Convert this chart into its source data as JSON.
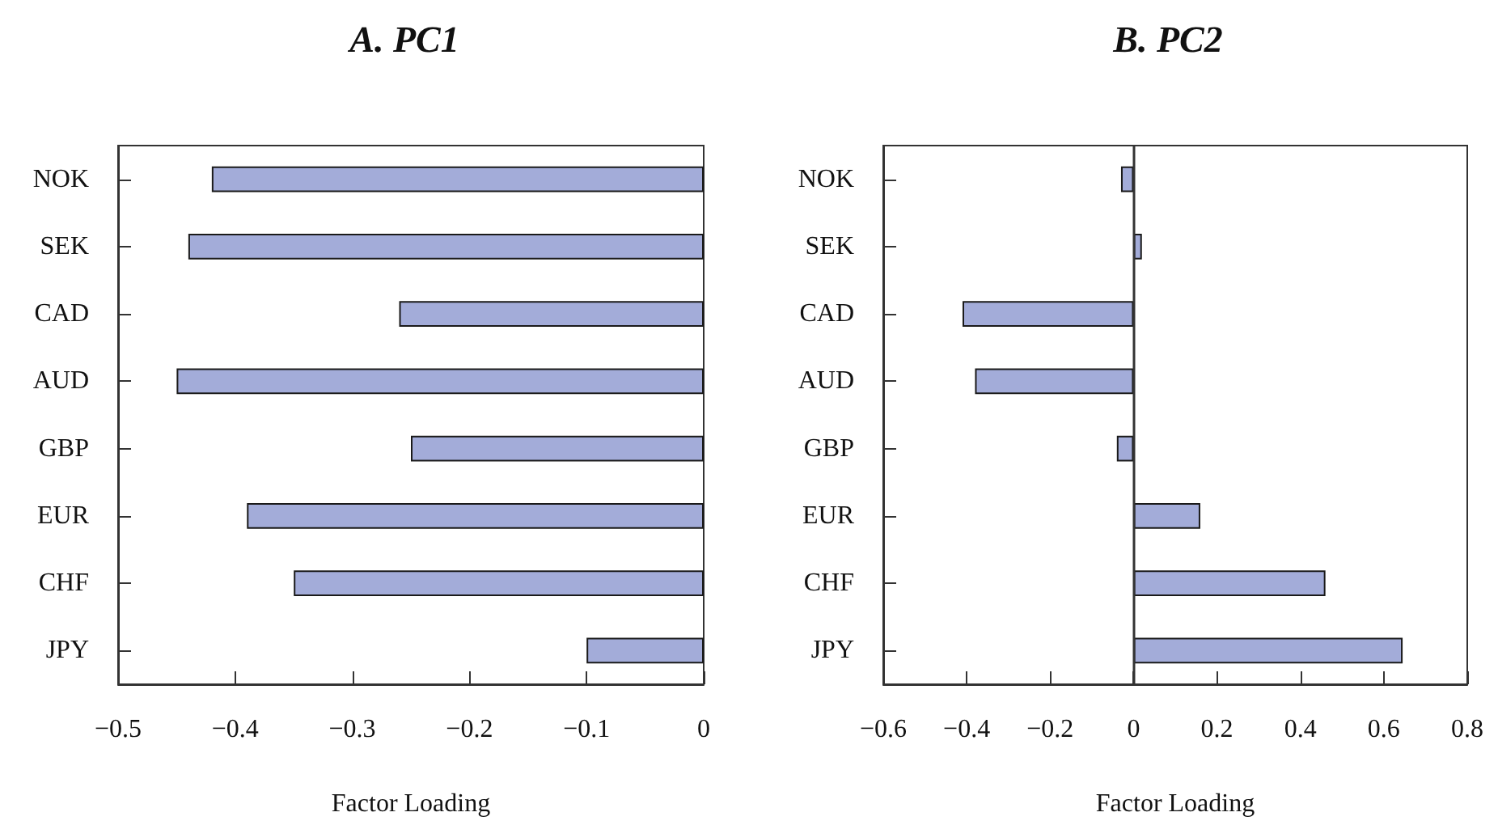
{
  "chart_data": [
    {
      "type": "bar",
      "orientation": "horizontal",
      "title": "A. PC1",
      "xlabel": "Factor Loading",
      "categories": [
        "NOK",
        "SEK",
        "CAD",
        "AUD",
        "GBP",
        "EUR",
        "CHF",
        "JPY"
      ],
      "values": [
        -0.42,
        -0.44,
        -0.26,
        -0.45,
        -0.25,
        -0.39,
        -0.35,
        -0.1
      ],
      "color": "#a3acd9",
      "xlim": [
        -0.5,
        0
      ],
      "xticks": [
        {
          "value": -0.5,
          "label": "−0.5"
        },
        {
          "value": -0.4,
          "label": "−0.4"
        },
        {
          "value": -0.3,
          "label": "−0.3"
        },
        {
          "value": -0.2,
          "label": "−0.2"
        },
        {
          "value": -0.1,
          "label": "−0.1"
        },
        0
      ]
    },
    {
      "type": "bar",
      "orientation": "horizontal",
      "title": "B. PC2",
      "xlabel": "Factor Loading",
      "categories": [
        "NOK",
        "SEK",
        "CAD",
        "AUD",
        "GBP",
        "EUR",
        "CHF",
        "JPY"
      ],
      "values": [
        -0.03,
        0.02,
        -0.41,
        -0.38,
        -0.04,
        0.16,
        0.46,
        0.645
      ],
      "color": "#a3acd9",
      "xlim": [
        -0.6,
        0.8
      ],
      "xticks": [
        {
          "value": -0.6,
          "label": "−0.6"
        },
        {
          "value": -0.4,
          "label": "−0.4"
        },
        {
          "value": -0.2,
          "label": "−0.2"
        },
        0,
        0.2,
        0.4,
        0.6,
        0.8
      ],
      "ref_lines": [
        {
          "axis": "x",
          "value": 0,
          "color": "#333333"
        }
      ]
    }
  ]
}
